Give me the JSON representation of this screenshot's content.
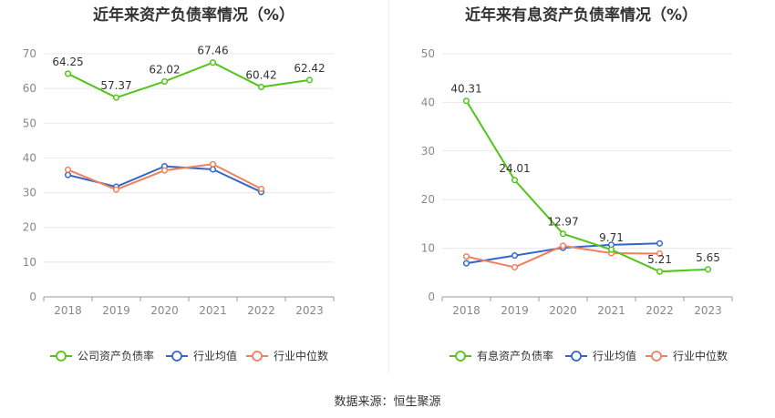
{
  "charts": {
    "left": {
      "title": "近年来资产负债率情况（%）"
    },
    "right": {
      "title": "近年来有息资产负债率情况（%）"
    }
  },
  "source": "数据来源：恒生聚源",
  "colors": {
    "green": "#52c41a",
    "blue": "#3366cc",
    "orange": "#f0805a",
    "grid": "#e8e8e8",
    "axis": "#999999"
  },
  "chart_data": [
    {
      "type": "line",
      "title": "近年来资产负债率情况（%）",
      "categories": [
        "2018",
        "2019",
        "2020",
        "2021",
        "2022",
        "2023"
      ],
      "ylim": [
        0,
        70
      ],
      "yticks": [
        0,
        10,
        20,
        30,
        40,
        50,
        60,
        70
      ],
      "grid": true,
      "legend_position": "bottom",
      "series": [
        {
          "name": "公司资产负债率",
          "color": "#52c41a",
          "values": [
            64.25,
            57.37,
            62.02,
            67.46,
            60.42,
            62.42
          ],
          "labels": [
            "64.25",
            "57.37",
            "62.02",
            "67.46",
            "60.42",
            "62.42"
          ]
        },
        {
          "name": "行业均值",
          "color": "#3366cc",
          "values": [
            35.1,
            31.7,
            37.6,
            36.7,
            30.2,
            null
          ]
        },
        {
          "name": "行业中位数",
          "color": "#f0805a",
          "values": [
            36.6,
            30.9,
            36.4,
            38.2,
            31.1,
            null
          ]
        }
      ]
    },
    {
      "type": "line",
      "title": "近年来有息资产负债率情况（%）",
      "categories": [
        "2018",
        "2019",
        "2020",
        "2021",
        "2022",
        "2023"
      ],
      "ylim": [
        0,
        50
      ],
      "yticks": [
        0,
        10,
        20,
        30,
        40,
        50
      ],
      "grid": true,
      "legend_position": "bottom",
      "series": [
        {
          "name": "有息资产负债率",
          "color": "#52c41a",
          "values": [
            40.31,
            24.01,
            12.97,
            9.71,
            5.21,
            5.65
          ],
          "labels": [
            "40.31",
            "24.01",
            "12.97",
            "9.71",
            "5.21",
            "5.65"
          ]
        },
        {
          "name": "行业均值",
          "color": "#3366cc",
          "values": [
            6.9,
            8.5,
            10.1,
            10.7,
            11.0,
            null
          ]
        },
        {
          "name": "行业中位数",
          "color": "#f0805a",
          "values": [
            8.3,
            6.1,
            10.5,
            9.0,
            8.9,
            null
          ]
        }
      ]
    }
  ]
}
